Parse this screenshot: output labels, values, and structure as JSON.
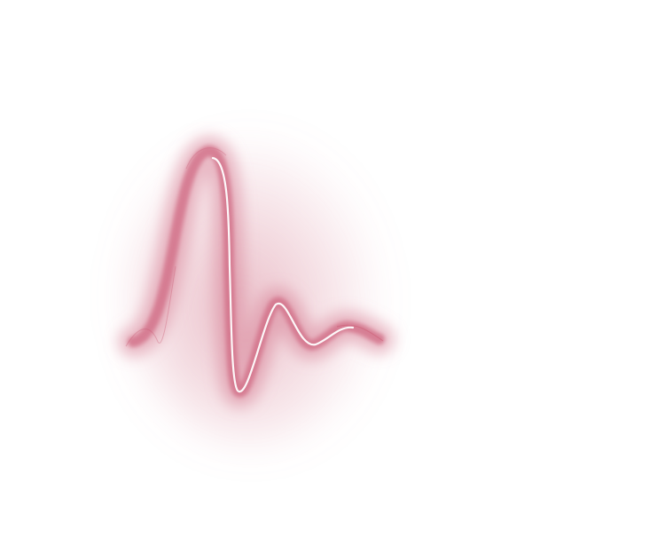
{
  "artwork": {
    "icon": "heartbeat-pulse-wave-icon",
    "colors": {
      "background": "#ffffff",
      "glow": "#d9879a",
      "stroke": "#c9566f",
      "highlight": "#ffffff"
    }
  }
}
